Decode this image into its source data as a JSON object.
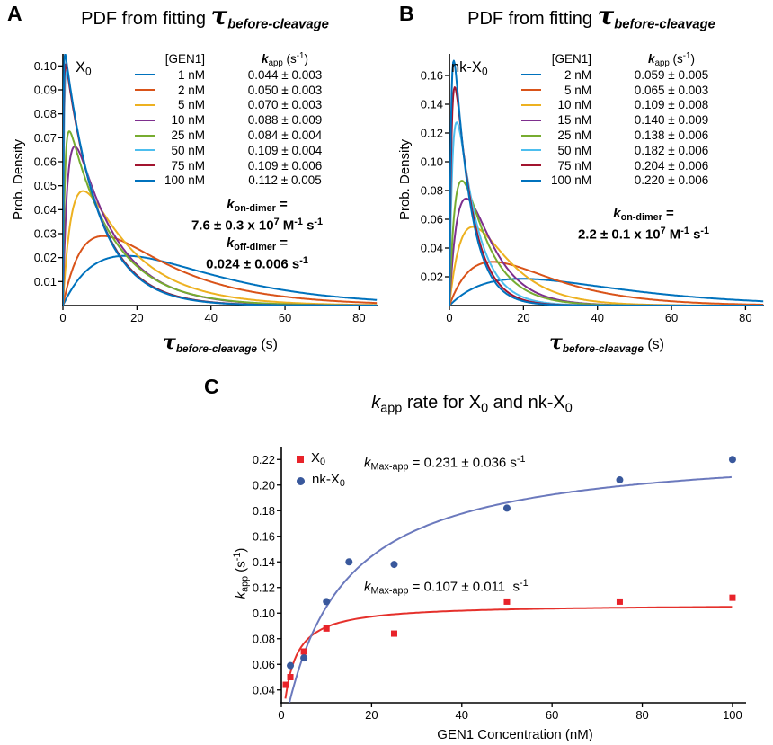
{
  "colors": {
    "series_cycle": [
      "#0072BD",
      "#D95319",
      "#EDB120",
      "#7E2F8E",
      "#77AC30",
      "#4DBEEE",
      "#A2142F",
      "#0072BD"
    ],
    "axis": "#000000",
    "x0_marker": "#E8232A",
    "x0_line": "#E5302B",
    "nkx0_marker": "#39589C",
    "nkx0_line": "#6B79BD"
  },
  "panels": {
    "a": {
      "letter": "A",
      "title": [
        [
          "t",
          "PDF from fitting "
        ],
        [
          "tau",
          "τ"
        ],
        [
          "tausub",
          "before-cleavage"
        ]
      ],
      "condition": [
        [
          "t",
          "X"
        ],
        [
          "sub",
          "0"
        ]
      ],
      "y_axis_label": "Prob. Density",
      "x_axis_label": [
        [
          "tau",
          "τ"
        ],
        [
          "tausub",
          "before-cleavage"
        ],
        [
          "t",
          " (s)"
        ]
      ],
      "legend_header_conc": "[GEN1]",
      "legend_header_k": [
        [
          "bi",
          "k"
        ],
        [
          "sub",
          "app"
        ],
        [
          "t",
          " (s"
        ],
        [
          "sup",
          "-1"
        ],
        [
          "t",
          ")"
        ]
      ],
      "annotations": [
        {
          "label": [
            [
              "bi",
              "k"
            ],
            [
              "bsub",
              "on-dimer"
            ],
            [
              "b",
              " ="
            ]
          ],
          "value": [
            [
              "b",
              "7.6 ± 0.3 x 10"
            ],
            [
              "bsup",
              "7"
            ],
            [
              "b",
              " M"
            ],
            [
              "bsup",
              "-1"
            ],
            [
              "b",
              " s"
            ],
            [
              "bsup",
              "-1"
            ]
          ]
        },
        {
          "label": [
            [
              "bi",
              "k"
            ],
            [
              "bsub",
              "off-dimer"
            ],
            [
              "b",
              " ="
            ]
          ],
          "value": [
            [
              "b",
              "0.024 ± 0.006 s"
            ],
            [
              "bsup",
              "-1"
            ]
          ]
        }
      ]
    },
    "b": {
      "letter": "B",
      "title": [
        [
          "t",
          "PDF from fitting "
        ],
        [
          "tau",
          "τ"
        ],
        [
          "tausub",
          "before-cleavage"
        ]
      ],
      "condition": [
        [
          "t",
          "nk-X"
        ],
        [
          "sub",
          "0"
        ]
      ],
      "y_axis_label": "Prob. Density",
      "x_axis_label": [
        [
          "tau",
          "τ"
        ],
        [
          "tausub",
          "before-cleavage"
        ],
        [
          "t",
          " (s)"
        ]
      ],
      "legend_header_conc": "[GEN1]",
      "legend_header_k": [
        [
          "bi",
          "k"
        ],
        [
          "sub",
          "app"
        ],
        [
          "t",
          " (s"
        ],
        [
          "sup",
          "-1"
        ],
        [
          "t",
          ")"
        ]
      ],
      "annotations": [
        {
          "label": [
            [
              "bi",
              "k"
            ],
            [
              "bsub",
              "on-dimer"
            ],
            [
              "b",
              " ="
            ]
          ],
          "value": [
            [
              "b",
              "2.2 ± 0.1 x 10"
            ],
            [
              "bsup",
              "7"
            ],
            [
              "b",
              " M"
            ],
            [
              "bsup",
              "-1"
            ],
            [
              "b",
              " s"
            ],
            [
              "bsup",
              "-1"
            ]
          ]
        }
      ]
    },
    "c": {
      "letter": "C",
      "title": [
        [
          "i",
          "k"
        ],
        [
          "sub",
          "app"
        ],
        [
          "t",
          " rate for X"
        ],
        [
          "sub",
          "0"
        ],
        [
          "t",
          " and nk-X"
        ],
        [
          "sub",
          "0"
        ]
      ],
      "y_axis_label": [
        [
          "i",
          "k"
        ],
        [
          "sub",
          "app"
        ],
        [
          "t",
          " (s"
        ],
        [
          "sup",
          "-1"
        ],
        [
          "t",
          ")"
        ]
      ],
      "x_axis_label": "GEN1 Concentration (nM)",
      "legend": [
        {
          "marker": "square",
          "color": "#E8232A",
          "label": [
            [
              "t",
              "X"
            ],
            [
              "sub",
              "0"
            ]
          ]
        },
        {
          "marker": "circle",
          "color": "#39589C",
          "label": [
            [
              "t",
              "nk-X"
            ],
            [
              "sub",
              "0"
            ]
          ]
        }
      ],
      "annotations": [
        {
          "rich": [
            [
              "i",
              "k"
            ],
            [
              "sub",
              "Max-app"
            ],
            [
              "t",
              " = 0.231 ± 0.036 s"
            ],
            [
              "sup",
              "-1"
            ]
          ]
        },
        {
          "rich": [
            [
              "i",
              "k"
            ],
            [
              "sub",
              "Max-app"
            ],
            [
              "t",
              " = 0.107 ± 0.011  s"
            ],
            [
              "sup",
              "-1"
            ]
          ]
        }
      ]
    }
  },
  "chart_data": [
    {
      "id": "pdf_tau_before_cleavage_X0",
      "panel": "A",
      "type": "line",
      "title": "PDF from fitting tau_before-cleavage (X0)",
      "xlabel": "tau_before-cleavage (s)",
      "ylabel": "Prob. Density",
      "xlim": [
        0,
        85
      ],
      "ylim": [
        0,
        0.105
      ],
      "xticks": [
        0,
        20,
        40,
        60,
        80
      ],
      "yticks": [
        0.01,
        0.02,
        0.03,
        0.04,
        0.05,
        0.06,
        0.07,
        0.08,
        0.09,
        0.1
      ],
      "legend_title": "[GEN1]  k_app (s^-1)",
      "k_on_dimer": "7.6 ± 0.3 x 10^7 M^-1 s^-1",
      "k_off_dimer": "0.024 ± 0.006 s^-1",
      "k_on_per_nM_s": 0.076,
      "curve_model": "f(t)=ka*kb/(kb-ka)*(exp(-ka*t)-exp(-kb*t)); ka=k_app, kb=k_on*[GEN1]",
      "series": [
        {
          "gen1_nM": 1,
          "k_app_s": 0.044,
          "err_s": 0.003
        },
        {
          "gen1_nM": 2,
          "k_app_s": 0.05,
          "err_s": 0.003
        },
        {
          "gen1_nM": 5,
          "k_app_s": 0.07,
          "err_s": 0.003
        },
        {
          "gen1_nM": 10,
          "k_app_s": 0.088,
          "err_s": 0.009
        },
        {
          "gen1_nM": 25,
          "k_app_s": 0.084,
          "err_s": 0.004
        },
        {
          "gen1_nM": 50,
          "k_app_s": 0.109,
          "err_s": 0.004
        },
        {
          "gen1_nM": 75,
          "k_app_s": 0.109,
          "err_s": 0.006
        },
        {
          "gen1_nM": 100,
          "k_app_s": 0.112,
          "err_s": 0.005
        }
      ]
    },
    {
      "id": "pdf_tau_before_cleavage_nkX0",
      "panel": "B",
      "type": "line",
      "title": "PDF from fitting tau_before-cleavage (nk-X0)",
      "xlabel": "tau_before-cleavage (s)",
      "ylabel": "Prob. Density",
      "xlim": [
        0,
        85
      ],
      "ylim": [
        0,
        0.175
      ],
      "xticks": [
        0,
        20,
        40,
        60,
        80
      ],
      "yticks": [
        0.02,
        0.04,
        0.06,
        0.08,
        0.1,
        0.12,
        0.14,
        0.16
      ],
      "legend_title": "[GEN1]  k_app (s^-1)",
      "k_on_dimer": "2.2 ± 0.1 x 10^7 M^-1 s^-1",
      "k_on_per_nM_s": 0.022,
      "curve_model": "f(t)=ka*kb/(kb-ka)*(exp(-ka*t)-exp(-kb*t)); ka=k_app, kb=k_on*[GEN1]",
      "series": [
        {
          "gen1_nM": 2,
          "k_app_s": 0.059,
          "err_s": 0.005
        },
        {
          "gen1_nM": 5,
          "k_app_s": 0.065,
          "err_s": 0.003
        },
        {
          "gen1_nM": 10,
          "k_app_s": 0.109,
          "err_s": 0.008
        },
        {
          "gen1_nM": 15,
          "k_app_s": 0.14,
          "err_s": 0.009
        },
        {
          "gen1_nM": 25,
          "k_app_s": 0.138,
          "err_s": 0.006
        },
        {
          "gen1_nM": 50,
          "k_app_s": 0.182,
          "err_s": 0.006
        },
        {
          "gen1_nM": 75,
          "k_app_s": 0.204,
          "err_s": 0.006
        },
        {
          "gen1_nM": 100,
          "k_app_s": 0.22,
          "err_s": 0.006
        }
      ]
    },
    {
      "id": "kapp_vs_gen1_concentration",
      "panel": "C",
      "type": "scatter",
      "title": "k_app rate for X0 and nk-X0",
      "xlabel": "GEN1 Concentration (nM)",
      "ylabel": "k_app (s^-1)",
      "xlim": [
        0,
        103
      ],
      "ylim": [
        0.03,
        0.23
      ],
      "xticks": [
        0,
        20,
        40,
        60,
        80,
        100
      ],
      "yticks": [
        0.04,
        0.06,
        0.08,
        0.1,
        0.12,
        0.14,
        0.16,
        0.18,
        0.2,
        0.22
      ],
      "series": [
        {
          "name": "X0",
          "marker": "square",
          "marker_color": "#E8232A",
          "line_color": "#E5302B",
          "x": [
            1,
            2,
            5,
            10,
            25,
            50,
            75,
            100
          ],
          "y": [
            0.044,
            0.05,
            0.07,
            0.088,
            0.084,
            0.109,
            0.109,
            0.112
          ],
          "k_max_app": "0.107 ± 0.011 s^-1",
          "fit": {
            "k_max_s": 0.107,
            "K_half_nM": 2.0
          }
        },
        {
          "name": "nk-X0",
          "marker": "circle",
          "marker_color": "#39589C",
          "line_color": "#6B79BD",
          "x": [
            2,
            5,
            10,
            15,
            25,
            50,
            75,
            100
          ],
          "y": [
            0.059,
            0.065,
            0.109,
            0.14,
            0.138,
            0.182,
            0.204,
            0.22
          ],
          "k_max_app": "0.231 ± 0.036 s^-1",
          "fit": {
            "k_max_s": 0.231,
            "K_half_nM": 12.0
          }
        }
      ]
    }
  ]
}
